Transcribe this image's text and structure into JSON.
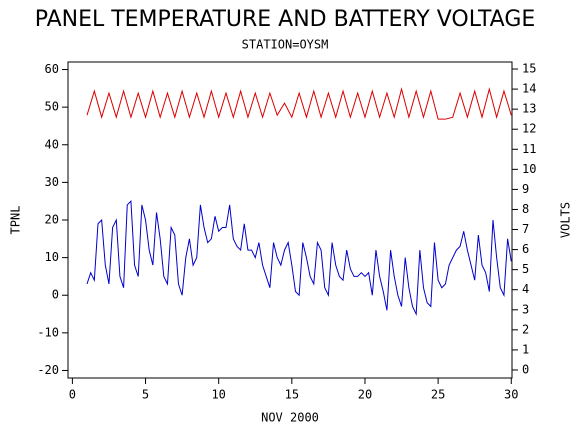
{
  "chart_data": {
    "type": "line",
    "title": "PANEL TEMPERATURE AND BATTERY VOLTAGE",
    "subtitle": "STATION=OYSM",
    "xlabel": "NOV 2000",
    "ylabel": "TPNL",
    "y2label": "VOLTS",
    "xlim": [
      -0.3,
      30.05
    ],
    "xticks": [
      0,
      5,
      10,
      15,
      20,
      25,
      30
    ],
    "ylim": [
      -22,
      62
    ],
    "yticks": [
      -20,
      -10,
      0,
      10,
      20,
      30,
      40,
      50,
      60
    ],
    "y2lim": [
      -0.4,
      15.35
    ],
    "y2ticks": [
      0,
      1,
      2,
      3,
      4,
      5,
      6,
      7,
      8,
      9,
      10,
      11,
      12,
      13,
      14,
      15
    ],
    "series": [
      {
        "color": "#0000cc",
        "x": [
          1,
          1.25,
          1.5,
          1.75,
          2,
          2.25,
          2.5,
          2.75,
          3,
          3.25,
          3.5,
          3.75,
          4,
          4.25,
          4.5,
          4.75,
          5,
          5.25,
          5.5,
          5.75,
          6,
          6.25,
          6.5,
          6.75,
          7,
          7.25,
          7.5,
          7.75,
          8,
          8.25,
          8.5,
          8.75,
          9,
          9.25,
          9.5,
          9.75,
          10,
          10.25,
          10.5,
          10.75,
          11,
          11.25,
          11.5,
          11.75,
          12,
          12.25,
          12.5,
          12.75,
          13,
          13.25,
          13.5,
          13.75,
          14,
          14.25,
          14.5,
          14.75,
          15,
          15.25,
          15.5,
          15.75,
          16,
          16.25,
          16.5,
          16.75,
          17,
          17.25,
          17.5,
          17.75,
          18,
          18.25,
          18.5,
          18.75,
          19,
          19.25,
          19.5,
          19.75,
          20,
          20.25,
          20.5,
          20.75,
          21,
          21.25,
          21.5,
          21.75,
          22,
          22.25,
          22.5,
          22.75,
          23,
          23.25,
          23.5,
          23.75,
          24,
          24.25,
          24.5,
          24.75,
          25,
          25.25,
          25.5,
          25.75,
          26,
          26.25,
          26.5,
          26.75,
          27,
          27.25,
          27.5,
          27.75,
          28,
          28.25,
          28.5,
          28.75,
          29,
          29.25,
          29.5,
          29.75,
          30
        ],
        "values": [
          3,
          6,
          4,
          19,
          20,
          8,
          3,
          18,
          20,
          5,
          2,
          24,
          25,
          8,
          5,
          24,
          20,
          12,
          8,
          22,
          15,
          5,
          3,
          18,
          16,
          3,
          0,
          10,
          15,
          8,
          10,
          24,
          18,
          14,
          15,
          21,
          17,
          18,
          18,
          24,
          15,
          13,
          12,
          19,
          12,
          12,
          10,
          14,
          8,
          5,
          2,
          14,
          10,
          8,
          12,
          14,
          8,
          1,
          0,
          14,
          10,
          5,
          3,
          14,
          12,
          2,
          0,
          14,
          8,
          5,
          4,
          12,
          7,
          5,
          5,
          6,
          5,
          6,
          0,
          12,
          5,
          1,
          -4,
          12,
          5,
          0,
          -3,
          10,
          2,
          -3,
          -5,
          12,
          2,
          -2,
          -3,
          14,
          4,
          2,
          3,
          8,
          10,
          12,
          13,
          17,
          12,
          8,
          4,
          16,
          8,
          6,
          1,
          20,
          10,
          2,
          0,
          15,
          9
        ]
      },
      {
        "color": "#dd0000",
        "axis": "y2",
        "x": [
          1,
          1.5,
          2,
          2.5,
          3,
          3.5,
          4,
          4.5,
          5,
          5.5,
          6,
          6.5,
          7,
          7.5,
          8,
          8.5,
          9,
          9.5,
          10,
          10.5,
          11,
          11.5,
          12,
          12.5,
          13,
          13.5,
          14,
          14.5,
          15,
          15.5,
          16,
          16.5,
          17,
          17.5,
          18,
          18.5,
          19,
          19.5,
          20,
          20.5,
          21,
          21.5,
          22,
          22.5,
          23,
          23.5,
          24,
          24.5,
          25,
          25.5,
          26,
          26.5,
          27,
          27.5,
          28,
          28.5,
          29,
          29.5,
          30
        ],
        "values": [
          12.7,
          13.9,
          12.6,
          13.8,
          12.6,
          13.9,
          12.6,
          13.8,
          12.6,
          13.9,
          12.6,
          13.8,
          12.6,
          13.9,
          12.6,
          13.8,
          12.6,
          13.9,
          12.6,
          13.8,
          12.6,
          13.9,
          12.6,
          13.8,
          12.6,
          13.8,
          12.7,
          13.3,
          12.6,
          13.8,
          12.6,
          13.9,
          12.6,
          13.8,
          12.6,
          13.9,
          12.6,
          13.8,
          12.6,
          13.9,
          12.6,
          13.8,
          12.6,
          14.0,
          12.6,
          13.9,
          12.6,
          13.9,
          12.5,
          12.5,
          12.6,
          13.8,
          12.6,
          13.9,
          12.6,
          14.0,
          12.6,
          13.9,
          12.7
        ]
      }
    ]
  }
}
